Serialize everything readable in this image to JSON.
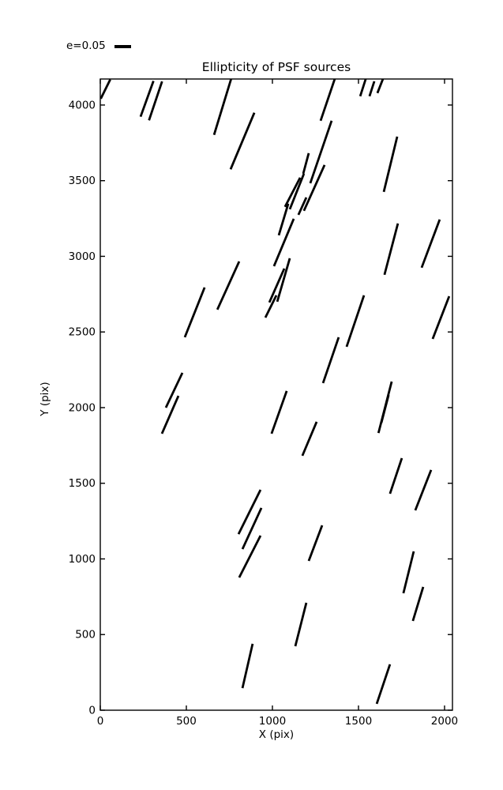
{
  "page": {
    "background": "#ffffff",
    "foreground": "#000000"
  },
  "chart_data": {
    "type": "scatter",
    "mark": "whisker-segments",
    "title": "Ellipticity of PSF sources",
    "xlabel": "X (pix)",
    "ylabel": "Y (pix)",
    "xlim": [
      0,
      2046
    ],
    "ylim": [
      0,
      4172
    ],
    "xticks": [
      0,
      500,
      1000,
      1500,
      2000
    ],
    "yticks": [
      0,
      500,
      1000,
      1500,
      2000,
      2500,
      3000,
      3500,
      4000
    ],
    "grid": false,
    "legend": {
      "label": "e=0.05",
      "position": "above-top-left"
    },
    "line_color": "#000000",
    "segments": [
      [
        3,
        4042,
        58,
        4169
      ],
      [
        234,
        3923,
        309,
        4159
      ],
      [
        283,
        3899,
        359,
        4156
      ],
      [
        661,
        3803,
        760,
        4172
      ],
      [
        757,
        3575,
        895,
        3949
      ],
      [
        680,
        2648,
        807,
        2966
      ],
      [
        1280,
        3896,
        1362,
        4172
      ],
      [
        1344,
        3896,
        1220,
        3483
      ],
      [
        1211,
        3682,
        1179,
        3546
      ],
      [
        1183,
        3546,
        1101,
        3311
      ],
      [
        1161,
        3520,
        1073,
        3327
      ],
      [
        1303,
        3604,
        1183,
        3301
      ],
      [
        1092,
        3348,
        1037,
        3139
      ],
      [
        1124,
        3248,
        1009,
        2935
      ],
      [
        1197,
        3389,
        1151,
        3274
      ],
      [
        1069,
        2919,
        982,
        2695
      ],
      [
        1101,
        2987,
        1028,
        2700
      ],
      [
        1510,
        4058,
        1542,
        4172
      ],
      [
        1564,
        4058,
        1592,
        4157
      ],
      [
        1610,
        4079,
        1642,
        4172
      ],
      [
        1647,
        3426,
        1725,
        3791
      ],
      [
        1867,
        2925,
        1972,
        3243
      ],
      [
        1651,
        2878,
        1729,
        3217
      ],
      [
        491,
        2465,
        606,
        2794
      ],
      [
        959,
        2595,
        1023,
        2742
      ],
      [
        381,
        2000,
        477,
        2230
      ],
      [
        358,
        1828,
        454,
        2078
      ],
      [
        1431,
        2402,
        1532,
        2742
      ],
      [
        1294,
        2162,
        1385,
        2465
      ],
      [
        1931,
        2454,
        2027,
        2736
      ],
      [
        1083,
        2110,
        995,
        1828
      ],
      [
        1174,
        1682,
        1257,
        1906
      ],
      [
        1683,
        1431,
        1752,
        1666
      ],
      [
        1922,
        1588,
        1830,
        1321
      ],
      [
        1693,
        2172,
        1616,
        1832
      ],
      [
        1675,
        2083,
        1633,
        1900
      ],
      [
        803,
        1164,
        931,
        1457
      ],
      [
        826,
        1065,
        936,
        1337
      ],
      [
        807,
        877,
        931,
        1154
      ],
      [
        826,
        146,
        885,
        439
      ],
      [
        1211,
        987,
        1289,
        1222
      ],
      [
        1761,
        773,
        1821,
        1050
      ],
      [
        1816,
        590,
        1876,
        815
      ],
      [
        1133,
        423,
        1197,
        710
      ],
      [
        1606,
        42,
        1683,
        303
      ]
    ]
  }
}
